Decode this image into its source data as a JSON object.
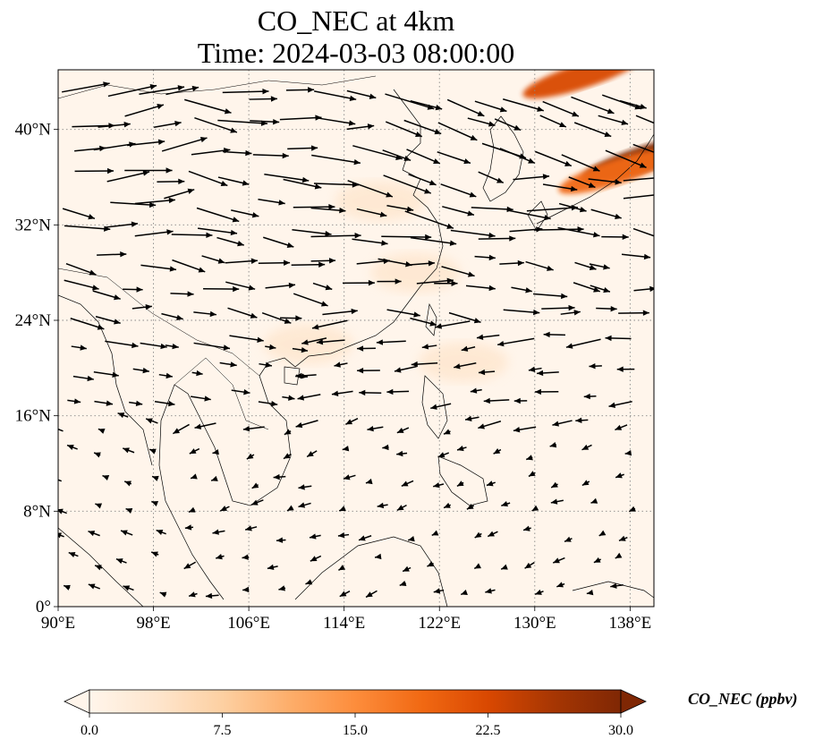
{
  "title": {
    "line1": "CO_NEC at 4km",
    "line2": "Time: 2024-03-03 08:00:00"
  },
  "map": {
    "extent": {
      "lon_min": 90,
      "lon_max": 140,
      "lat_min": 0,
      "lat_max": 45
    },
    "gridlines": "dotted",
    "background_color": "#fff5eb",
    "coastline_color": "#000000"
  },
  "x_ticks": [
    {
      "lon": 90,
      "label": "90°E"
    },
    {
      "lon": 98,
      "label": "98°E"
    },
    {
      "lon": 106,
      "label": "106°E"
    },
    {
      "lon": 114,
      "label": "114°E"
    },
    {
      "lon": 122,
      "label": "122°E"
    },
    {
      "lon": 130,
      "label": "130°E"
    },
    {
      "lon": 138,
      "label": "138°E"
    }
  ],
  "y_ticks": [
    {
      "lat": 0,
      "label": "0°"
    },
    {
      "lat": 8,
      "label": "8°N"
    },
    {
      "lat": 16,
      "label": "16°N"
    },
    {
      "lat": 24,
      "label": "24°N"
    },
    {
      "lat": 32,
      "label": "32°N"
    },
    {
      "lat": 40,
      "label": "40°N"
    }
  ],
  "colorbar": {
    "label": "CO_NEC (ppbv)",
    "min": 0,
    "max": 30,
    "extend": "both",
    "ticks": [
      "0.0",
      "7.5",
      "15.0",
      "22.5",
      "30.0"
    ],
    "colors": [
      "#fff5eb",
      "#fee6ce",
      "#fdd0a2",
      "#fdae6b",
      "#fd8d3c",
      "#f16913",
      "#d94801",
      "#a63603",
      "#7f2704"
    ]
  },
  "plumes": [
    {
      "lon": 117,
      "lat": 34,
      "value": 5
    },
    {
      "lon": 120,
      "lat": 28,
      "value": 4
    },
    {
      "lon": 124,
      "lat": 20.5,
      "value": 4
    },
    {
      "lon": 111,
      "lat": 22,
      "value": 3
    },
    {
      "lon": 134,
      "lat": 44.5,
      "value": 24
    },
    {
      "lon": 139,
      "lat": 37.5,
      "value": 30
    },
    {
      "lon": 137,
      "lat": 36.5,
      "value": 18
    }
  ],
  "wind_field": {
    "description_regime": "westerlies in north, northeasterlies in south",
    "arrow_color": "#000000"
  }
}
